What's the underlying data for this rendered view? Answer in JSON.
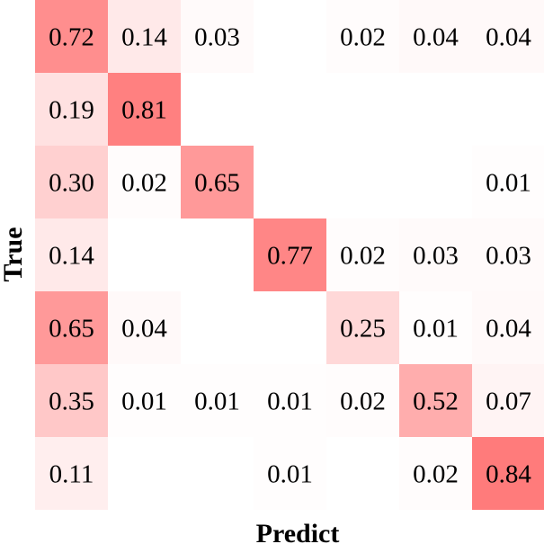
{
  "chart_data": {
    "type": "heatmap",
    "title": "",
    "xlabel": "Predict",
    "ylabel": "True",
    "max_color": "#ff7b7b",
    "min_color": "#ffffff",
    "matrix": [
      [
        0.72,
        0.14,
        0.03,
        null,
        0.02,
        0.04,
        0.04
      ],
      [
        0.19,
        0.81,
        null,
        null,
        null,
        null,
        null
      ],
      [
        0.3,
        0.02,
        0.65,
        null,
        null,
        null,
        0.01
      ],
      [
        0.14,
        null,
        null,
        0.77,
        0.02,
        0.03,
        0.03
      ],
      [
        0.65,
        0.04,
        null,
        null,
        0.25,
        0.01,
        0.04
      ],
      [
        0.35,
        0.01,
        0.01,
        0.01,
        0.02,
        0.52,
        0.07
      ],
      [
        0.11,
        null,
        null,
        0.01,
        null,
        0.02,
        0.84
      ]
    ],
    "labels": [
      [
        "0.72",
        "0.14",
        "0.03",
        "",
        "0.02",
        "0.04",
        "0.04"
      ],
      [
        "0.19",
        "0.81",
        "",
        "",
        "",
        "",
        ""
      ],
      [
        "0.30",
        "0.02",
        "0.65",
        "",
        "",
        "",
        "0.01"
      ],
      [
        "0.14",
        "",
        "",
        "0.77",
        "0.02",
        "0.03",
        "0.03"
      ],
      [
        "0.65",
        "0.04",
        "",
        "",
        "0.25",
        "0.01",
        "0.04"
      ],
      [
        "0.35",
        "0.01",
        "0.01",
        "0.01",
        "0.02",
        "0.52",
        "0.07"
      ],
      [
        "0.11",
        "",
        "",
        "0.01",
        "",
        "0.02",
        "0.84"
      ]
    ]
  }
}
